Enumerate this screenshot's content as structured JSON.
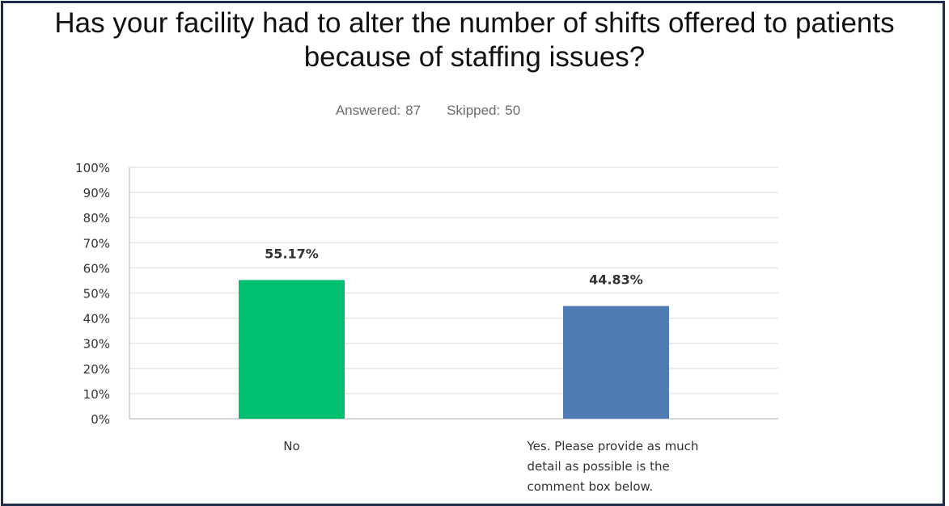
{
  "title": "Has your facility had to alter the number of shifts offered to patients\nbecause of staffing issues?",
  "stats": {
    "answered_label": "Answered:",
    "answered_value": "87",
    "skipped_label": "Skipped:",
    "skipped_value": "50"
  },
  "colors": {
    "bar_no": "#00bf6f",
    "bar_yes": "#507cb6",
    "frame": "#1f2d4d",
    "grid": "#e6e6e6"
  },
  "chart_data": {
    "type": "bar",
    "categories": [
      "No",
      "Yes. Please provide as much detail as possible is the comment box below."
    ],
    "category_lines": [
      [
        "No"
      ],
      [
        "Yes. Please provide as much",
        "detail as possible is the",
        "comment box below."
      ]
    ],
    "values": [
      55.17,
      44.83
    ],
    "data_labels": [
      "55.17%",
      "44.83%"
    ],
    "ylim": [
      0,
      100
    ],
    "yticks": [
      0,
      10,
      20,
      30,
      40,
      50,
      60,
      70,
      80,
      90,
      100
    ],
    "ytick_labels": [
      "0%",
      "10%",
      "20%",
      "30%",
      "40%",
      "50%",
      "60%",
      "70%",
      "80%",
      "90%",
      "100%"
    ],
    "grid": true
  }
}
